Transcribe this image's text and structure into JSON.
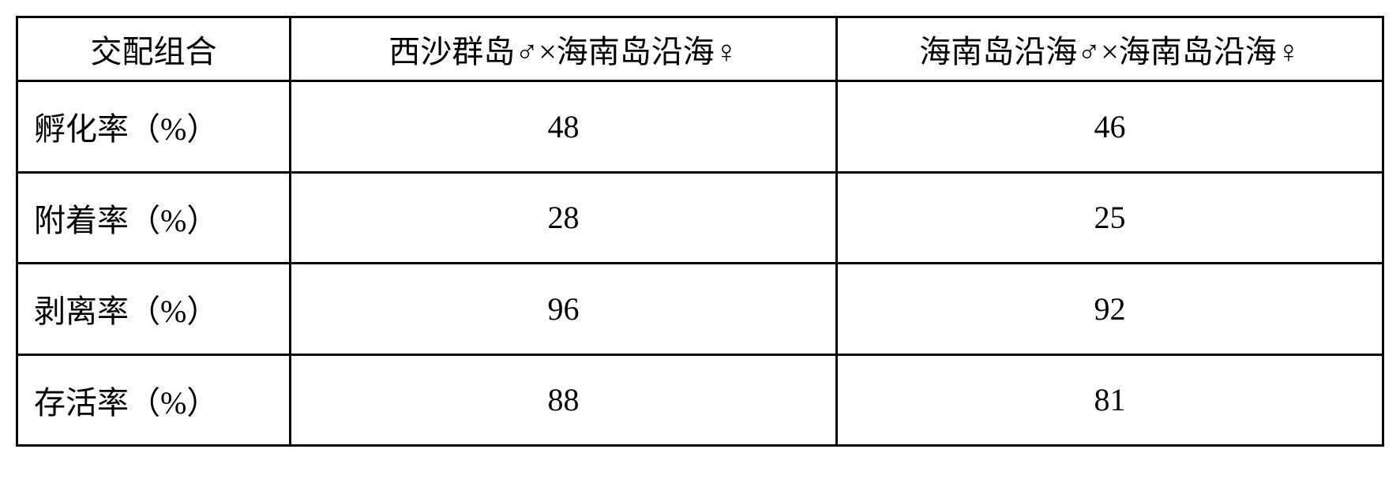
{
  "table": {
    "border_color": "#000000",
    "border_width": 3,
    "background_color": "#ffffff",
    "text_color": "#000000",
    "font_size": 40,
    "columns": [
      {
        "key": "label",
        "header": "交配组合",
        "width_pct": 20,
        "align": "left"
      },
      {
        "key": "cross1",
        "header": "西沙群岛♂×海南岛沿海♀",
        "width_pct": 40,
        "align": "center"
      },
      {
        "key": "cross2",
        "header": "海南岛沿海♂×海南岛沿海♀",
        "width_pct": 40,
        "align": "center"
      }
    ],
    "rows": [
      {
        "label": "孵化率（%）",
        "cross1": "48",
        "cross2": "46"
      },
      {
        "label": "附着率（%）",
        "cross1": "28",
        "cross2": "25"
      },
      {
        "label": "剥离率（%）",
        "cross1": "96",
        "cross2": "92"
      },
      {
        "label": "存活率（%）",
        "cross1": "88",
        "cross2": "81"
      }
    ]
  }
}
